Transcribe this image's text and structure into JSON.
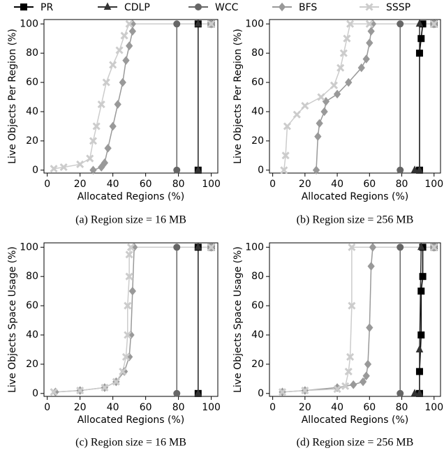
{
  "chart_data": [
    {
      "type": "line",
      "caption": "(a) Region size = 16 MB",
      "xlabel": "Allocated Regions (%)",
      "ylabel": "Live Objects Per Region (%)",
      "xlim": [
        -2,
        104
      ],
      "ylim": [
        -2,
        103
      ],
      "xticks": [
        0,
        20,
        40,
        60,
        80,
        100
      ],
      "yticks": [
        0,
        20,
        40,
        60,
        80,
        100
      ],
      "series": [
        {
          "name": "PR",
          "color": "#000000",
          "marker": "square",
          "x": [
            92,
            92,
            100
          ],
          "values": [
            0,
            100,
            100
          ]
        },
        {
          "name": "CDLP",
          "color": "#333333",
          "marker": "triangle",
          "x": [
            92,
            92,
            100
          ],
          "values": [
            0,
            100,
            100
          ]
        },
        {
          "name": "WCC",
          "color": "#666666",
          "marker": "circle",
          "x": [
            79,
            79,
            100
          ],
          "values": [
            0,
            100,
            100
          ]
        },
        {
          "name": "BFS",
          "color": "#999999",
          "marker": "diamond",
          "x": [
            28,
            33,
            35,
            37,
            40,
            43,
            46,
            48,
            50,
            52,
            52,
            100
          ],
          "values": [
            0,
            2,
            5,
            15,
            30,
            45,
            60,
            75,
            85,
            95,
            100,
            100
          ]
        },
        {
          "name": "SSSP",
          "color": "#cccccc",
          "marker": "x",
          "x": [
            4,
            10,
            20,
            26,
            28,
            30,
            33,
            36,
            40,
            44,
            47,
            50,
            100
          ],
          "values": [
            1,
            2,
            4,
            8,
            20,
            30,
            45,
            60,
            72,
            82,
            92,
            100,
            100
          ]
        }
      ]
    },
    {
      "type": "line",
      "caption": "(b) Region size = 256 MB",
      "xlabel": "Allocated Regions (%)",
      "ylabel": "Live Objects Per Region (%)",
      "xlim": [
        -2,
        104
      ],
      "ylim": [
        -2,
        103
      ],
      "xticks": [
        0,
        20,
        40,
        60,
        80,
        100
      ],
      "yticks": [
        0,
        20,
        40,
        60,
        80,
        100
      ],
      "series": [
        {
          "name": "PR",
          "color": "#000000",
          "marker": "square",
          "x": [
            91,
            91,
            92,
            93,
            100
          ],
          "values": [
            0,
            80,
            90,
            100,
            100
          ]
        },
        {
          "name": "CDLP",
          "color": "#333333",
          "marker": "triangle",
          "x": [
            88,
            91,
            91,
            100
          ],
          "values": [
            0,
            0,
            100,
            100
          ]
        },
        {
          "name": "WCC",
          "color": "#666666",
          "marker": "circle",
          "x": [
            79,
            79,
            100
          ],
          "values": [
            0,
            100,
            100
          ]
        },
        {
          "name": "BFS",
          "color": "#999999",
          "marker": "diamond",
          "x": [
            27,
            28,
            29,
            32,
            33,
            40,
            47,
            55,
            58,
            60,
            61,
            62,
            100
          ],
          "values": [
            0,
            23,
            32,
            40,
            47,
            52,
            60,
            70,
            76,
            87,
            95,
            100,
            100
          ]
        },
        {
          "name": "SSSP",
          "color": "#cccccc",
          "marker": "x",
          "x": [
            7,
            8,
            9,
            15,
            20,
            30,
            38,
            42,
            44,
            46,
            48,
            60,
            100
          ],
          "values": [
            0,
            10,
            30,
            38,
            44,
            50,
            58,
            70,
            80,
            90,
            100,
            100,
            100
          ]
        }
      ]
    },
    {
      "type": "line",
      "caption": "(c) Region size = 16 MB",
      "xlabel": "Allocated Regions (%)",
      "ylabel": "Live Objects Space Usage (%)",
      "xlim": [
        -2,
        104
      ],
      "ylim": [
        -2,
        103
      ],
      "xticks": [
        0,
        20,
        40,
        60,
        80,
        100
      ],
      "yticks": [
        0,
        20,
        40,
        60,
        80,
        100
      ],
      "series": [
        {
          "name": "PR",
          "color": "#000000",
          "marker": "square",
          "x": [
            92,
            92,
            100
          ],
          "values": [
            0,
            100,
            100
          ]
        },
        {
          "name": "CDLP",
          "color": "#333333",
          "marker": "triangle",
          "x": [
            92,
            92,
            100
          ],
          "values": [
            0,
            100,
            100
          ]
        },
        {
          "name": "WCC",
          "color": "#666666",
          "marker": "circle",
          "x": [
            79,
            79,
            100
          ],
          "values": [
            0,
            100,
            100
          ]
        },
        {
          "name": "BFS",
          "color": "#999999",
          "marker": "diamond",
          "x": [
            5,
            20,
            35,
            42,
            47,
            50,
            51,
            52,
            53,
            100
          ],
          "values": [
            1,
            2,
            4,
            8,
            15,
            25,
            40,
            70,
            100,
            100
          ]
        },
        {
          "name": "SSSP",
          "color": "#cccccc",
          "marker": "x",
          "x": [
            4,
            20,
            35,
            42,
            46,
            48,
            49,
            49,
            50,
            50,
            51,
            100
          ],
          "values": [
            1,
            2,
            4,
            8,
            15,
            25,
            40,
            60,
            80,
            95,
            100,
            100
          ]
        }
      ]
    },
    {
      "type": "line",
      "caption": "(d) Region size = 256 MB",
      "xlabel": "Allocated Regions (%)",
      "ylabel": "Live Objects Space Usage (%)",
      "xlim": [
        -2,
        104
      ],
      "ylim": [
        -2,
        103
      ],
      "xticks": [
        0,
        20,
        40,
        60,
        80,
        100
      ],
      "yticks": [
        0,
        20,
        40,
        60,
        80,
        100
      ],
      "series": [
        {
          "name": "PR",
          "color": "#000000",
          "marker": "square",
          "x": [
            91,
            91,
            92,
            92,
            93,
            93,
            100
          ],
          "values": [
            0,
            15,
            40,
            70,
            80,
            100,
            100
          ]
        },
        {
          "name": "CDLP",
          "color": "#333333",
          "marker": "triangle",
          "x": [
            88,
            91,
            91,
            92,
            100
          ],
          "values": [
            0,
            0,
            30,
            100,
            100
          ]
        },
        {
          "name": "WCC",
          "color": "#666666",
          "marker": "circle",
          "x": [
            79,
            79,
            100
          ],
          "values": [
            0,
            100,
            100
          ]
        },
        {
          "name": "BFS",
          "color": "#999999",
          "marker": "diamond",
          "x": [
            6,
            20,
            40,
            50,
            56,
            58,
            59,
            60,
            61,
            62,
            100
          ],
          "values": [
            1,
            2,
            4,
            6,
            8,
            12,
            20,
            45,
            87,
            100,
            100
          ]
        },
        {
          "name": "SSSP",
          "color": "#cccccc",
          "marker": "x",
          "x": [
            6,
            20,
            40,
            45,
            47,
            48,
            49,
            49,
            100
          ],
          "values": [
            1,
            2,
            3,
            5,
            15,
            25,
            60,
            100,
            100
          ]
        }
      ]
    }
  ]
}
